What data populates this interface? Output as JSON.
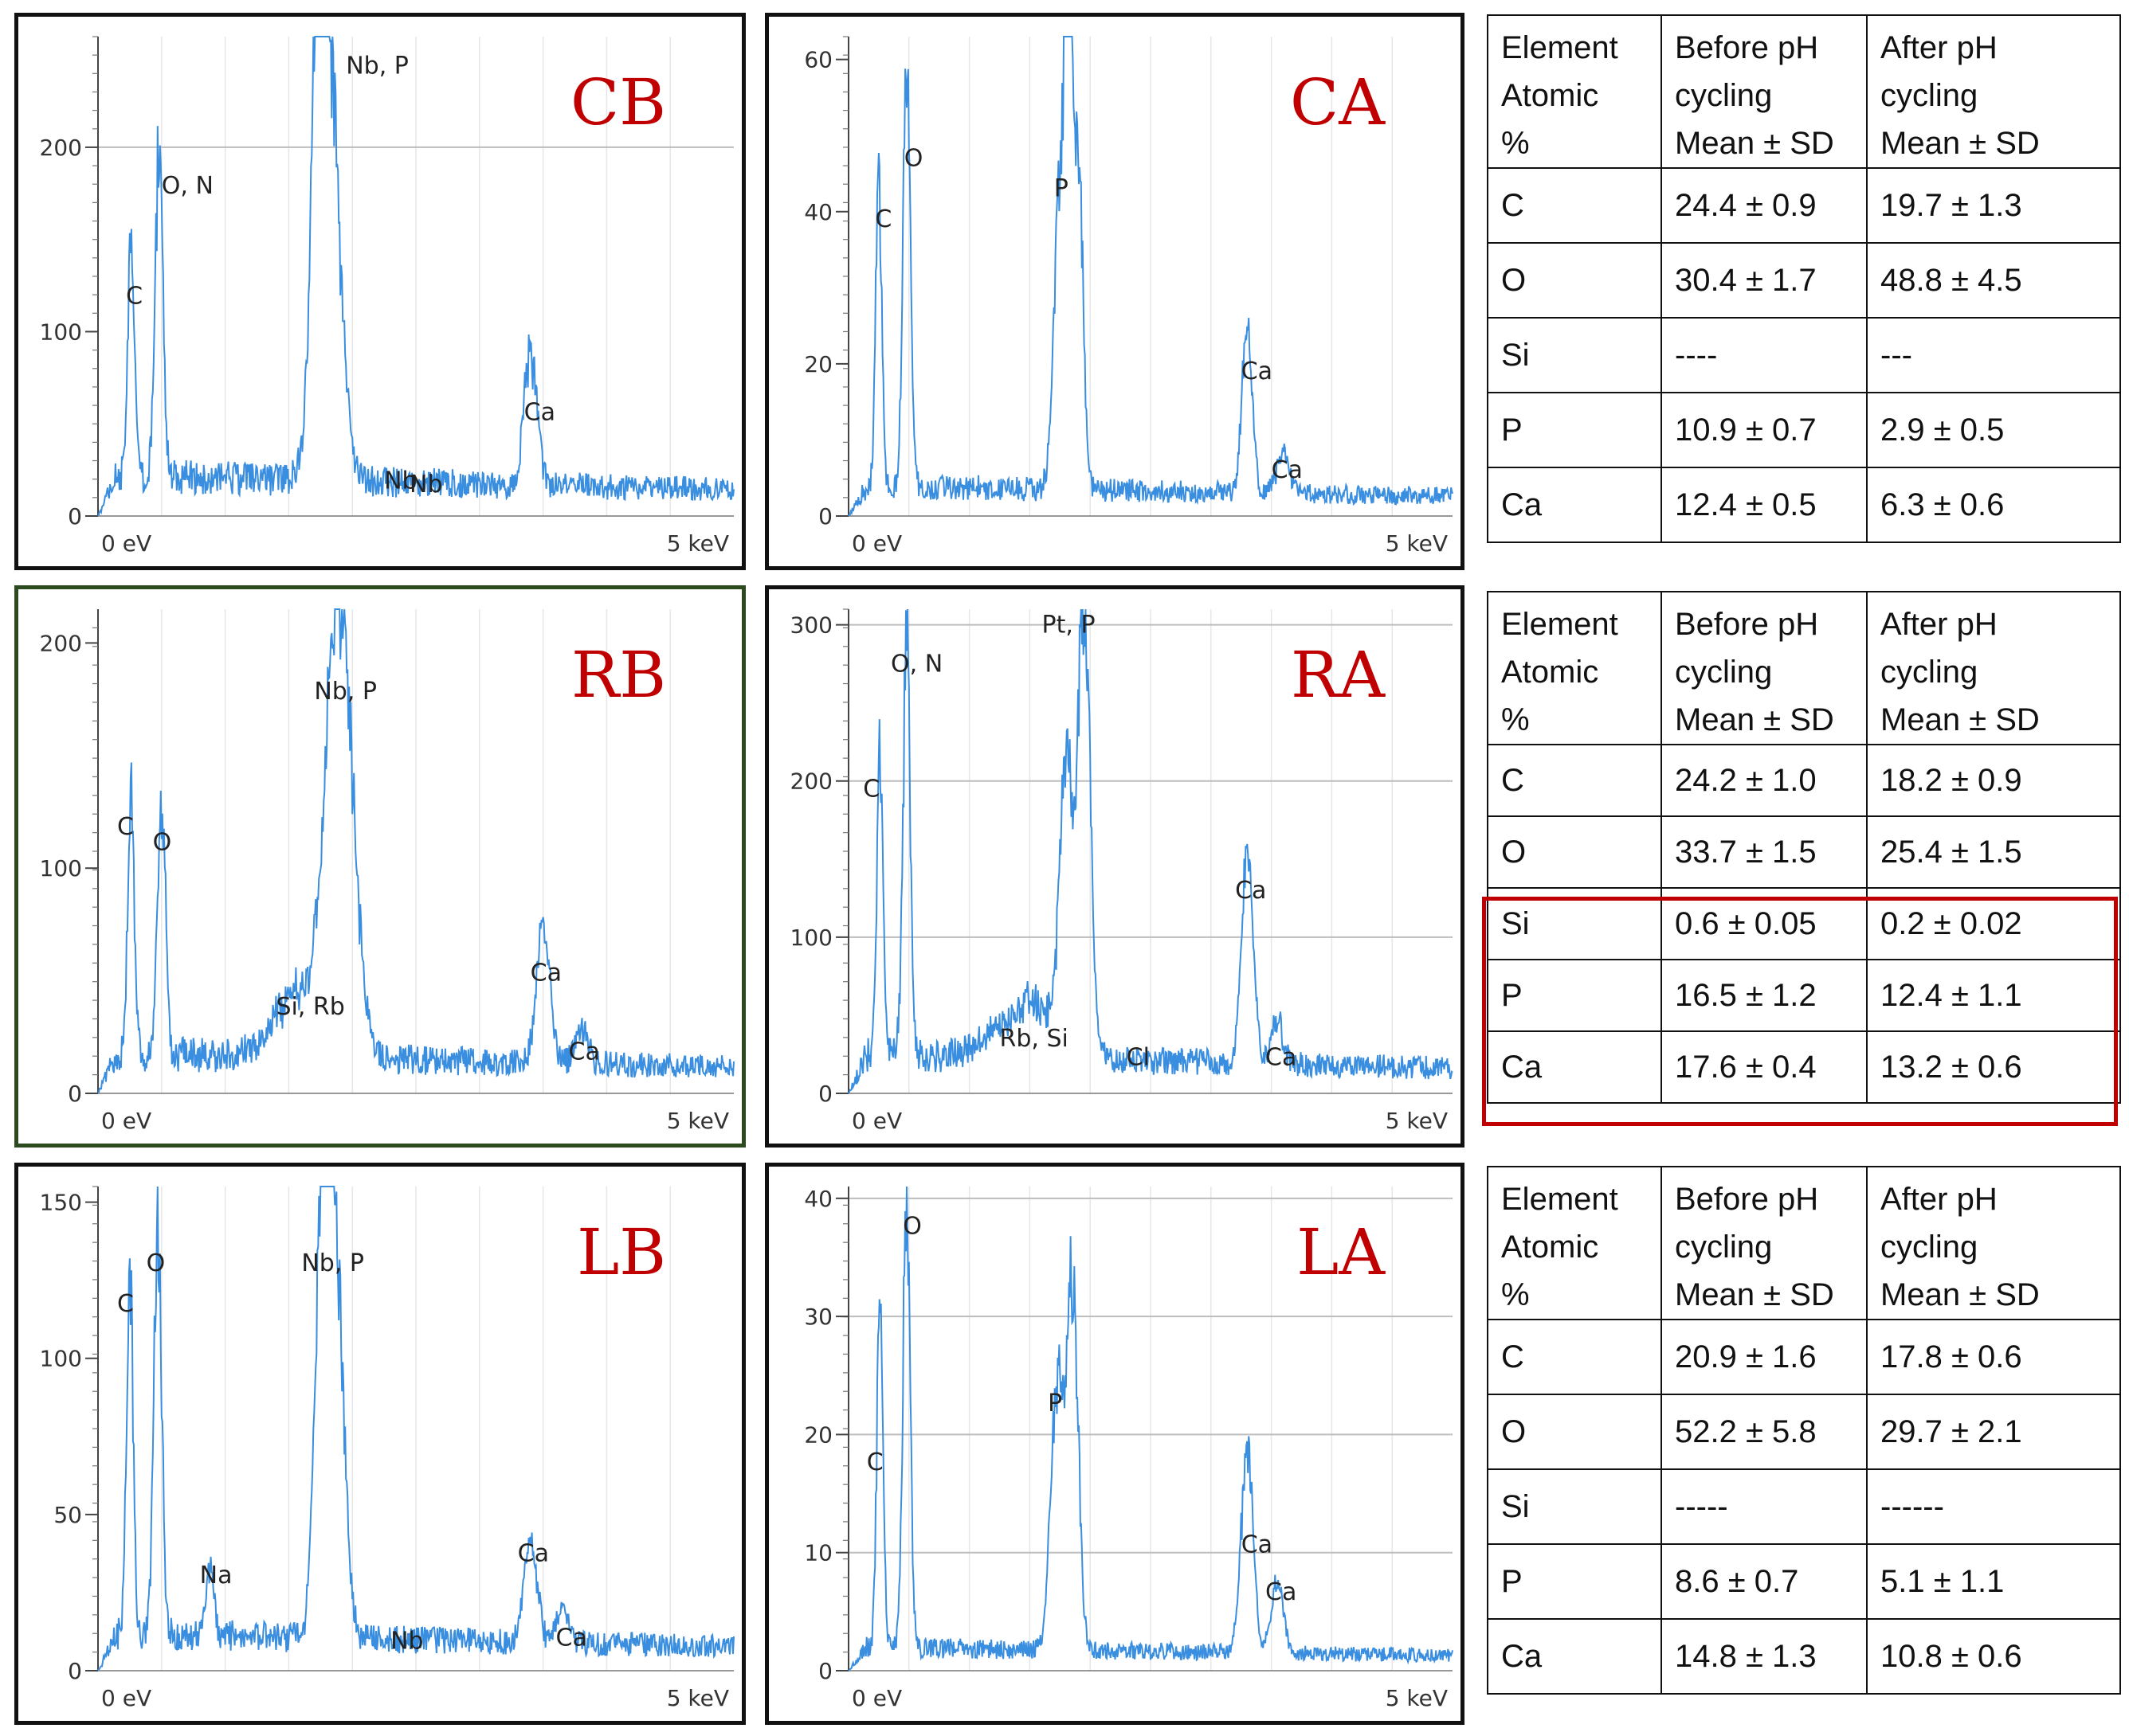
{
  "figure": {
    "spectra": [
      {
        "id": "CB",
        "label": "CB",
        "label_color": "#c00000",
        "frame_color": "#111111",
        "xlabel_left": "0 eV",
        "xlabel_right": "5 keV",
        "chart_data": {
          "type": "line",
          "xlim": [
            0,
            5
          ],
          "ylim": [
            0,
            260
          ],
          "ticks": [
            0,
            100,
            200
          ],
          "grid": [
            200
          ],
          "baseline": 22,
          "peaks": [
            {
              "x": 0.26,
              "y": 130,
              "w": 0.025
            },
            {
              "x": 0.48,
              "y": 175,
              "w": 0.03
            },
            {
              "x": 1.8,
              "y": 245,
              "w": 0.09
            },
            {
              "x": 1.73,
              "y": 160,
              "w": 0.04
            },
            {
              "x": 3.4,
              "y": 72,
              "w": 0.05
            }
          ],
          "annotations": [
            {
              "text": "O, N",
              "x": 0.5,
              "y": 175
            },
            {
              "text": "C",
              "x": 0.22,
              "y": 115
            },
            {
              "text": "Nb, P",
              "x": 1.95,
              "y": 240
            },
            {
              "text": "Ca",
              "x": 3.35,
              "y": 52
            },
            {
              "text": "Nb",
              "x": 2.25,
              "y": 15
            },
            {
              "text": "Nb",
              "x": 2.45,
              "y": 13
            }
          ]
        }
      },
      {
        "id": "CA",
        "label": "CA",
        "label_color": "#c00000",
        "frame_color": "#111111",
        "xlabel_left": "0 eV",
        "xlabel_right": "5 keV",
        "chart_data": {
          "type": "line",
          "xlim": [
            0,
            5
          ],
          "ylim": [
            0,
            63
          ],
          "ticks": [
            0,
            20,
            40,
            60
          ],
          "grid": [],
          "baseline": 4,
          "peaks": [
            {
              "x": 0.25,
              "y": 40,
              "w": 0.025
            },
            {
              "x": 0.48,
              "y": 54,
              "w": 0.03
            },
            {
              "x": 1.75,
              "y": 38,
              "w": 0.05
            },
            {
              "x": 1.82,
              "y": 58,
              "w": 0.03
            },
            {
              "x": 1.9,
              "y": 44,
              "w": 0.04
            },
            {
              "x": 3.3,
              "y": 23,
              "w": 0.04
            },
            {
              "x": 3.6,
              "y": 6,
              "w": 0.05
            }
          ],
          "annotations": [
            {
              "text": "O",
              "x": 0.46,
              "y": 46
            },
            {
              "text": "C",
              "x": 0.22,
              "y": 38
            },
            {
              "text": "P",
              "x": 1.7,
              "y": 42
            },
            {
              "text": "Ca",
              "x": 3.25,
              "y": 18
            },
            {
              "text": "Ca",
              "x": 3.5,
              "y": 5
            }
          ]
        }
      },
      {
        "id": "RB",
        "label": "RB",
        "label_color": "#c00000",
        "frame_color": "#2d4a1e",
        "xlabel_left": "0 eV",
        "xlabel_right": "5 keV",
        "chart_data": {
          "type": "line",
          "xlim": [
            0,
            5
          ],
          "ylim": [
            0,
            215
          ],
          "ticks": [
            0,
            100,
            200
          ],
          "grid": [],
          "baseline": 18,
          "peaks": [
            {
              "x": 0.26,
              "y": 115,
              "w": 0.025
            },
            {
              "x": 0.5,
              "y": 118,
              "w": 0.03
            },
            {
              "x": 1.9,
              "y": 205,
              "w": 0.1
            },
            {
              "x": 1.6,
              "y": 30,
              "w": 0.2
            },
            {
              "x": 3.5,
              "y": 62,
              "w": 0.05
            },
            {
              "x": 3.8,
              "y": 15,
              "w": 0.05
            }
          ],
          "annotations": [
            {
              "text": "C",
              "x": 0.15,
              "y": 115
            },
            {
              "text": "O",
              "x": 0.43,
              "y": 108
            },
            {
              "text": "Nb, P",
              "x": 1.7,
              "y": 175
            },
            {
              "text": "Si, Rb",
              "x": 1.4,
              "y": 35
            },
            {
              "text": "Ca",
              "x": 3.4,
              "y": 50
            },
            {
              "text": "Ca",
              "x": 3.7,
              "y": 15
            }
          ]
        }
      },
      {
        "id": "RA",
        "label": "RA",
        "label_color": "#c00000",
        "frame_color": "#111111",
        "xlabel_left": "0 eV",
        "xlabel_right": "5 keV",
        "chart_data": {
          "type": "line",
          "xlim": [
            0,
            5
          ],
          "ylim": [
            0,
            310
          ],
          "ticks": [
            0,
            100,
            200,
            300
          ],
          "grid": [
            300,
            200,
            100
          ],
          "baseline": 25,
          "peaks": [
            {
              "x": 0.26,
              "y": 200,
              "w": 0.025
            },
            {
              "x": 0.48,
              "y": 265,
              "w": 0.03
            },
            {
              "x": 1.8,
              "y": 185,
              "w": 0.05
            },
            {
              "x": 1.95,
              "y": 295,
              "w": 0.05
            },
            {
              "x": 1.5,
              "y": 35,
              "w": 0.25
            },
            {
              "x": 3.3,
              "y": 130,
              "w": 0.05
            },
            {
              "x": 3.55,
              "y": 25,
              "w": 0.05
            }
          ],
          "annotations": [
            {
              "text": "O, N",
              "x": 0.35,
              "y": 270
            },
            {
              "text": "C",
              "x": 0.12,
              "y": 190
            },
            {
              "text": "Pt, P",
              "x": 1.6,
              "y": 295
            },
            {
              "text": "Rb, Si",
              "x": 1.25,
              "y": 30
            },
            {
              "text": "Cl",
              "x": 2.3,
              "y": 18
            },
            {
              "text": "Ca",
              "x": 3.2,
              "y": 125
            },
            {
              "text": "Ca",
              "x": 3.45,
              "y": 18
            }
          ]
        }
      },
      {
        "id": "LB",
        "label": "LB",
        "label_color": "#c00000",
        "frame_color": "#111111",
        "xlabel_left": "0 eV",
        "xlabel_right": "5 keV",
        "chart_data": {
          "type": "line",
          "xlim": [
            0,
            5
          ],
          "ylim": [
            0,
            155
          ],
          "ticks": [
            0,
            50,
            100,
            150
          ],
          "grid": [],
          "baseline": 12,
          "peaks": [
            {
              "x": 0.25,
              "y": 115,
              "w": 0.025
            },
            {
              "x": 0.47,
              "y": 130,
              "w": 0.03
            },
            {
              "x": 0.88,
              "y": 25,
              "w": 0.03
            },
            {
              "x": 1.85,
              "y": 145,
              "w": 0.07
            },
            {
              "x": 1.75,
              "y": 95,
              "w": 0.05
            },
            {
              "x": 3.4,
              "y": 35,
              "w": 0.05
            },
            {
              "x": 3.65,
              "y": 10,
              "w": 0.05
            }
          ],
          "annotations": [
            {
              "text": "C",
              "x": 0.15,
              "y": 115
            },
            {
              "text": "O",
              "x": 0.38,
              "y": 128
            },
            {
              "text": "Nb, P",
              "x": 1.6,
              "y": 128
            },
            {
              "text": "Na",
              "x": 0.8,
              "y": 28
            },
            {
              "text": "Nb",
              "x": 2.3,
              "y": 7
            },
            {
              "text": "Ca",
              "x": 3.3,
              "y": 35
            },
            {
              "text": "Ca",
              "x": 3.6,
              "y": 8
            }
          ]
        }
      },
      {
        "id": "LA",
        "label": "LA",
        "label_color": "#c00000",
        "frame_color": "#111111",
        "xlabel_left": "0 eV",
        "xlabel_right": "5 keV",
        "chart_data": {
          "type": "line",
          "xlim": [
            0,
            5
          ],
          "ylim": [
            0,
            41
          ],
          "ticks": [
            0,
            10,
            20,
            30,
            40
          ],
          "grid": [
            40,
            30,
            20,
            10
          ],
          "baseline": 2,
          "peaks": [
            {
              "x": 0.26,
              "y": 32,
              "w": 0.025
            },
            {
              "x": 0.48,
              "y": 38,
              "w": 0.03
            },
            {
              "x": 1.72,
              "y": 22,
              "w": 0.05
            },
            {
              "x": 1.85,
              "y": 31,
              "w": 0.05
            },
            {
              "x": 3.3,
              "y": 17,
              "w": 0.05
            },
            {
              "x": 3.55,
              "y": 6,
              "w": 0.05
            }
          ],
          "annotations": [
            {
              "text": "O",
              "x": 0.45,
              "y": 37
            },
            {
              "text": "C",
              "x": 0.15,
              "y": 17
            },
            {
              "text": "P",
              "x": 1.65,
              "y": 22
            },
            {
              "text": "Ca",
              "x": 3.25,
              "y": 10
            },
            {
              "text": "Ca",
              "x": 3.45,
              "y": 6
            }
          ]
        }
      }
    ],
    "tables": [
      {
        "id": "table-c",
        "header": {
          "col1": [
            "Element",
            "Atomic",
            "%"
          ],
          "col2": [
            "Before pH",
            "cycling",
            "Mean ± SD"
          ],
          "col3": [
            "After pH",
            "cycling",
            "Mean ± SD"
          ]
        },
        "rows": [
          [
            "C",
            "24.4 ± 0.9",
            "19.7 ± 1.3"
          ],
          [
            "O",
            "30.4 ± 1.7",
            "48.8 ± 4.5"
          ],
          [
            "Si",
            "----",
            "---"
          ],
          [
            "P",
            "10.9 ± 0.7",
            "2.9 ± 0.5"
          ],
          [
            "Ca",
            "12.4 ± 0.5",
            "6.3 ± 0.6"
          ]
        ]
      },
      {
        "id": "table-r",
        "header": {
          "col1": [
            "Element",
            "Atomic",
            "%"
          ],
          "col2": [
            "Before pH",
            "cycling",
            "Mean ± SD"
          ],
          "col3": [
            "After pH",
            "cycling",
            "Mean ± SD"
          ]
        },
        "rows": [
          [
            "C",
            "24.2 ± 1.0",
            "18.2 ± 0.9"
          ],
          [
            "O",
            "33.7 ±  1.5",
            "25.4 ± 1.5"
          ],
          [
            "Si",
            "0.6 ± 0.05",
            "0.2 ±  0.02"
          ],
          [
            "P",
            "16.5 ± 1.2",
            "12.4 ± 1.1"
          ],
          [
            "Ca",
            "17.6 ± 0.4",
            "13.2 ± 0.6"
          ]
        ]
      },
      {
        "id": "table-l",
        "header": {
          "col1": [
            "Element",
            "Atomic",
            "%"
          ],
          "col2": [
            "Before pH",
            "cycling",
            "Mean ± SD"
          ],
          "col3": [
            "After pH",
            "cycling",
            "Mean ± SD"
          ]
        },
        "rows": [
          [
            "C",
            "20.9 ± 1.6",
            "17.8 ± 0.6"
          ],
          [
            "O",
            "52.2 ±  5.8",
            "29.7 ± 2.1"
          ],
          [
            "Si",
            "-----",
            "------"
          ],
          [
            "P",
            "8.6 ± 0.7",
            "5.1 ± 1.1"
          ],
          [
            "Ca",
            "14.8 ± 1.3",
            "10.8 ± 0.6"
          ]
        ]
      }
    ],
    "highlight_color": "#c00000",
    "line_color": "#3a8ee0"
  }
}
